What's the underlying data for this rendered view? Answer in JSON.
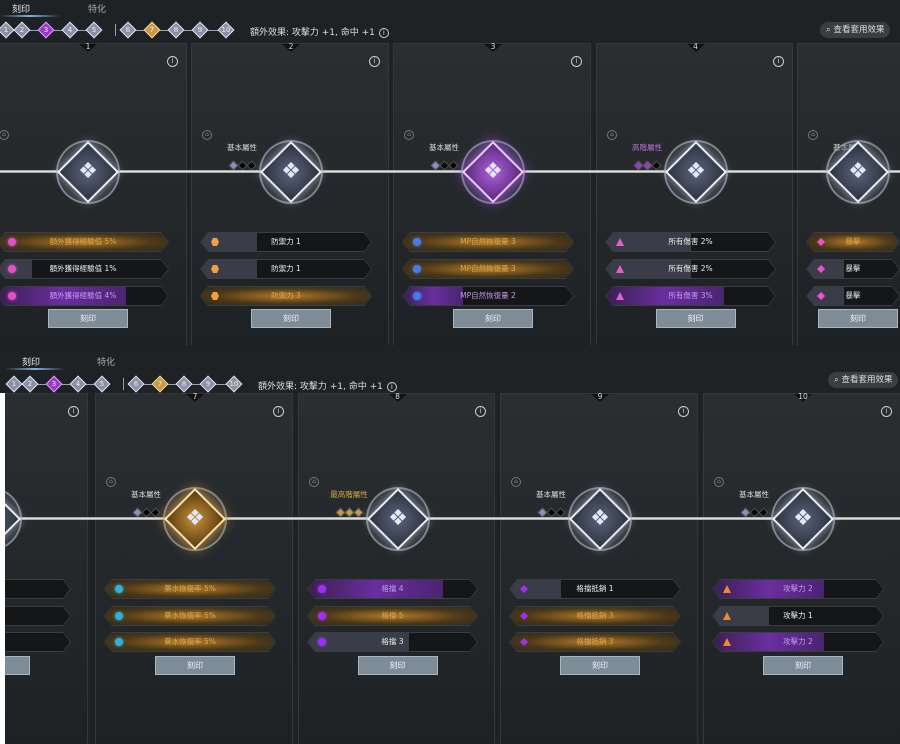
{
  "colors": {
    "purple": "#9b3bc4",
    "gold": "#c89a48",
    "background": "#1f2224"
  },
  "panels": [
    {
      "tabs": [
        "刻印",
        "特化"
      ],
      "stepper": {
        "nodes": [
          "1",
          "2",
          "3",
          "4",
          "5",
          "6",
          "7",
          "8",
          "9",
          "10"
        ],
        "highlight": {
          "3": "purple",
          "7": "gold"
        }
      },
      "extra_effect": "額外效果: 攻擊力 +1, 命中 +1",
      "info_icon": "i",
      "search_button": "查看套用效果",
      "cards": [
        {
          "number": "1",
          "emblem": "silver",
          "attr_label": "",
          "gems": [],
          "stats": [
            {
              "text": "額外獲得經驗值 5%",
              "style": "gold",
              "fill": 1,
              "icon": "circle",
              "icon_color": "#e050c8"
            },
            {
              "text": "額外獲得經驗值 1%",
              "style": "gray",
              "fill": 0.2,
              "icon": "circle",
              "icon_color": "#e050c8"
            },
            {
              "text": "額外獲得經驗值 4%",
              "style": "purple",
              "fill": 0.75,
              "icon": "circle",
              "icon_color": "#e050c8"
            }
          ],
          "button": "刻印"
        },
        {
          "number": "2",
          "emblem": "silver",
          "attr_label": "基本屬性",
          "gems": [
            "#8a90c8",
            "#000",
            "#000"
          ],
          "stats": [
            {
              "text": "防禦力 1",
              "style": "gray",
              "fill": 0.33,
              "icon": "hexagon",
              "icon_color": "#f0a040"
            },
            {
              "text": "防禦力 1",
              "style": "gray",
              "fill": 0.33,
              "icon": "hexagon",
              "icon_color": "#f0a040"
            },
            {
              "text": "防禦力 3",
              "style": "gold",
              "fill": 1,
              "icon": "hexagon",
              "icon_color": "#f0a040"
            }
          ],
          "button": "刻印"
        },
        {
          "number": "3",
          "emblem": "purple",
          "attr_label": "基本屬性",
          "gems": [
            "#8a90c8",
            "#000",
            "#000"
          ],
          "stats": [
            {
              "text": "MP自然恢復量 3",
              "style": "gold",
              "fill": 1,
              "icon": "circle",
              "icon_color": "#4a7ae8"
            },
            {
              "text": "MP自然恢復量 3",
              "style": "gold",
              "fill": 1,
              "icon": "circle",
              "icon_color": "#4a7ae8"
            },
            {
              "text": "MP自然恢復量 2",
              "style": "purple",
              "fill": 0.35,
              "icon": "circle",
              "icon_color": "#4a7ae8"
            }
          ],
          "button": "刻印"
        },
        {
          "number": "4",
          "emblem": "silver",
          "attr_label": "高階屬性",
          "attr_color": "#c070e0",
          "gems": [
            "#9b3bc4",
            "#9b3bc4",
            "#000"
          ],
          "stats": [
            {
              "text": "所有傷害 2%",
              "style": "gray",
              "fill": 0.5,
              "icon": "triangle",
              "icon_color": "#e060d0"
            },
            {
              "text": "所有傷害 2%",
              "style": "gray",
              "fill": 0.5,
              "icon": "triangle",
              "icon_color": "#e060d0"
            },
            {
              "text": "所有傷害 3%",
              "style": "purple",
              "fill": 0.7,
              "icon": "triangle",
              "icon_color": "#e060d0"
            }
          ],
          "button": "刻印"
        },
        {
          "number": "",
          "emblem": "silver",
          "attr_label": "基本屬性",
          "gems": [
            "#8a90c8",
            "#000",
            "#000"
          ],
          "stats": [
            {
              "text": "暴擊",
              "style": "gold",
              "fill": 1,
              "icon": "diamond",
              "icon_color": "#f050d0"
            },
            {
              "text": "暴擊",
              "style": "gray",
              "fill": 0.4,
              "icon": "diamond",
              "icon_color": "#f050d0"
            },
            {
              "text": "暴擊",
              "style": "gray",
              "fill": 0.4,
              "icon": "diamond",
              "icon_color": "#f050d0"
            }
          ],
          "button": "刻印"
        }
      ]
    },
    {
      "tabs": [
        "刻印",
        "特化"
      ],
      "stepper": {
        "nodes": [
          "1",
          "2",
          "3",
          "4",
          "5",
          "6",
          "7",
          "8",
          "9",
          "10"
        ],
        "highlight": {
          "3": "purple",
          "7": "gold"
        }
      },
      "extra_effect": "額外效果: 攻擊力 +1, 命中 +1",
      "info_icon": "i",
      "search_button": "查看套用效果",
      "cards": [
        {
          "number": "",
          "emblem": "silver",
          "attr_label": "",
          "gems": [],
          "stats": [
            {
              "text": "",
              "style": "purple",
              "fill": 0.6,
              "icon": "",
              "icon_color": ""
            },
            {
              "text": "",
              "style": "gray",
              "fill": 0,
              "icon": "",
              "icon_color": ""
            },
            {
              "text": "",
              "style": "gray",
              "fill": 0,
              "icon": "",
              "icon_color": ""
            }
          ],
          "button": ""
        },
        {
          "number": "7",
          "emblem": "gold",
          "attr_label": "基本屬性",
          "gems": [
            "#8a90c8",
            "#000",
            "#000"
          ],
          "stats": [
            {
              "text": "藥水恢復率 5%",
              "style": "gold",
              "fill": 1,
              "icon": "circle",
              "icon_color": "#30b0d8"
            },
            {
              "text": "藥水恢復率 5%",
              "style": "gold",
              "fill": 1,
              "icon": "circle",
              "icon_color": "#30b0d8"
            },
            {
              "text": "藥水恢復率 5%",
              "style": "gold",
              "fill": 1,
              "icon": "circle",
              "icon_color": "#30b0d8"
            }
          ],
          "button": "刻印"
        },
        {
          "number": "8",
          "emblem": "silver",
          "attr_label": "最高階屬性",
          "attr_color": "#d8a848",
          "gems": [
            "#c89a48",
            "#c89a48",
            "#c89a48"
          ],
          "stats": [
            {
              "text": "格擋 4",
              "style": "purple",
              "fill": 0.8,
              "icon": "circle",
              "icon_color": "#a030f0"
            },
            {
              "text": "格擋 5",
              "style": "gold",
              "fill": 1,
              "icon": "circle",
              "icon_color": "#a030f0"
            },
            {
              "text": "格擋 3",
              "style": "gray",
              "fill": 0.6,
              "icon": "circle",
              "icon_color": "#a030f0"
            }
          ],
          "button": "刻印"
        },
        {
          "number": "9",
          "emblem": "silver",
          "attr_label": "基本屬性",
          "gems": [
            "#8a90c8",
            "#000",
            "#000"
          ],
          "stats": [
            {
              "text": "格擋抵銷 1",
              "style": "gray",
              "fill": 0.3,
              "icon": "diamond",
              "icon_color": "#a030f0"
            },
            {
              "text": "格擋抵銷 3",
              "style": "gold",
              "fill": 1,
              "icon": "diamond",
              "icon_color": "#a030f0"
            },
            {
              "text": "格擋抵銷 3",
              "style": "gold",
              "fill": 1,
              "icon": "diamond",
              "icon_color": "#a030f0"
            }
          ],
          "button": "刻印"
        },
        {
          "number": "10",
          "emblem": "silver",
          "attr_label": "基本屬性",
          "gems": [
            "#8a90c8",
            "#000",
            "#000"
          ],
          "stats": [
            {
              "text": "攻擊力 2",
              "style": "purple",
              "fill": 0.65,
              "icon": "triangle",
              "icon_color": "#f08a30"
            },
            {
              "text": "攻擊力 1",
              "style": "gray",
              "fill": 0.33,
              "icon": "triangle",
              "icon_color": "#f08a30"
            },
            {
              "text": "攻擊力 2",
              "style": "purple",
              "fill": 0.65,
              "icon": "triangle",
              "icon_color": "#f08a30"
            }
          ],
          "button": "刻印"
        }
      ]
    }
  ]
}
